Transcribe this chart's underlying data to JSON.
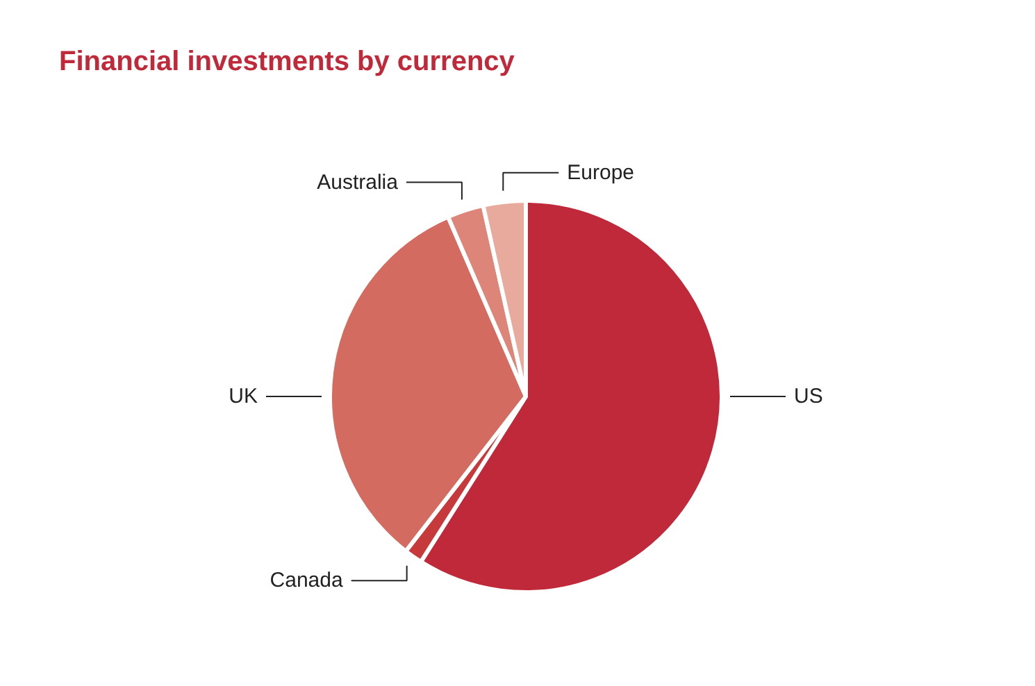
{
  "chart_data": {
    "type": "pie",
    "title": "Financial investments by currency",
    "categories": [
      "US",
      "Canada",
      "UK",
      "Australia",
      "Europe"
    ],
    "values": [
      59,
      1.5,
      33,
      3,
      3.5
    ],
    "colors": [
      "#c0293a",
      "#c63a3c",
      "#d36b60",
      "#dc8578",
      "#e8aa9d"
    ]
  }
}
